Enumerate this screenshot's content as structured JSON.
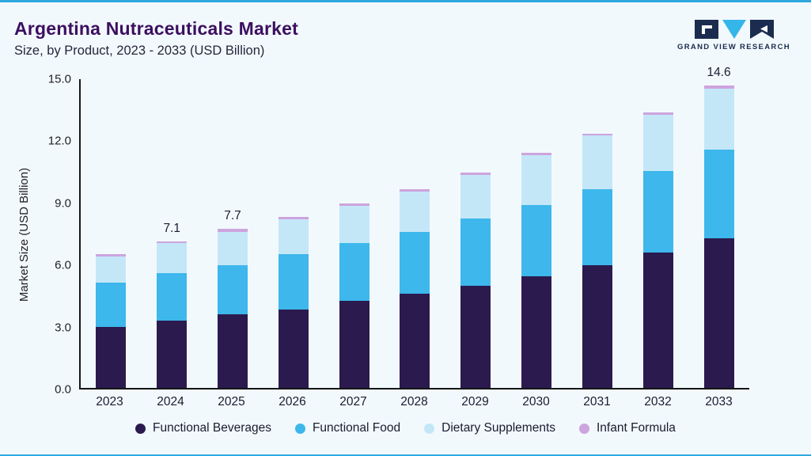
{
  "header": {
    "title": "Argentina Nutraceuticals Market",
    "subtitle": "Size, by Product, 2023 - 2033 (USD Billion)",
    "logo_text": "GRAND VIEW RESEARCH"
  },
  "colors": {
    "accent_line": "#2fa9e0",
    "title": "#3c0f5f",
    "logo_navy": "#1b2c4f",
    "logo_cyan": "#35b6e9",
    "background": "#f2f9fd"
  },
  "chart_data": {
    "type": "bar",
    "stacked": true,
    "title": "Argentina Nutraceuticals Market Size, by Product, 2023 - 2033 (USD Billion)",
    "xlabel": "",
    "ylabel": "Market Size (USD Billion)",
    "ylim": [
      0,
      15
    ],
    "yticks": [
      "15.0",
      "12.0",
      "9.0",
      "6.0",
      "3.0",
      "0.0"
    ],
    "grid": false,
    "legend_position": "bottom",
    "categories": [
      "2023",
      "2024",
      "2025",
      "2026",
      "2027",
      "2028",
      "2029",
      "2030",
      "2031",
      "2032",
      "2033"
    ],
    "series": [
      {
        "name": "Functional Beverages",
        "color": "#2b1a4e",
        "values": [
          2.95,
          3.25,
          3.55,
          3.8,
          4.2,
          4.55,
          4.95,
          5.4,
          5.95,
          6.55,
          7.25
        ]
      },
      {
        "name": "Functional Food",
        "color": "#3db7ec",
        "values": [
          2.15,
          2.3,
          2.4,
          2.65,
          2.8,
          3.0,
          3.25,
          3.45,
          3.65,
          3.95,
          4.25
        ]
      },
      {
        "name": "Dietary Supplements",
        "color": "#c4e7f8",
        "values": [
          1.25,
          1.45,
          1.6,
          1.7,
          1.8,
          1.95,
          2.1,
          2.4,
          2.6,
          2.7,
          2.95
        ]
      },
      {
        "name": "Infant Formula",
        "color": "#cda4de",
        "values": [
          0.1,
          0.1,
          0.15,
          0.1,
          0.1,
          0.1,
          0.1,
          0.1,
          0.1,
          0.1,
          0.15
        ]
      }
    ],
    "totals": [
      6.45,
      7.1,
      7.7,
      8.25,
      8.9,
      9.6,
      10.4,
      11.35,
      12.3,
      13.3,
      14.6
    ],
    "total_labels": [
      "",
      "7.1",
      "7.7",
      "",
      "",
      "",
      "",
      "",
      "",
      "",
      "14.6"
    ]
  }
}
